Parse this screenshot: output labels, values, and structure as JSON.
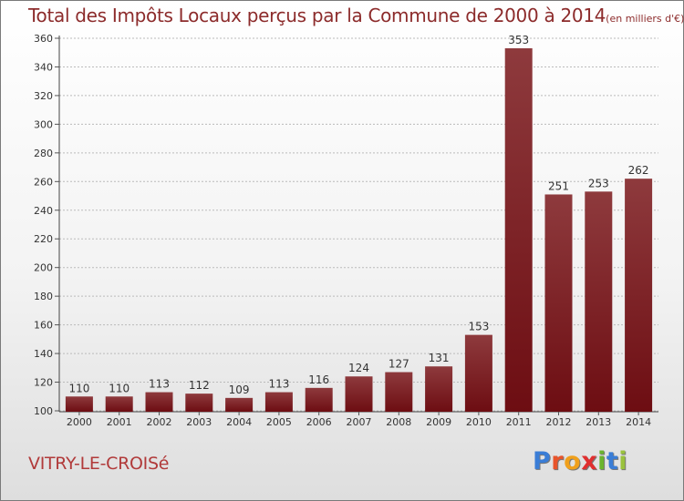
{
  "title": "Total des Impôts Locaux perçus par la Commune de 2000 à 2014",
  "subtitle": "(en milliers d'€)",
  "commune": "VITRY-LE-CROISé",
  "logo": {
    "letters": [
      "P",
      "r",
      "o",
      "x",
      "i",
      "t",
      "i"
    ],
    "colors": [
      "#3a7dd6",
      "#e8542b",
      "#f0a01c",
      "#e02f2f",
      "#6ab42d",
      "#3a7dd6",
      "#9ac23c"
    ]
  },
  "colors": {
    "bar": "#6d0d12",
    "bar_light": "#8e3a3d",
    "text": "#8c2b2b",
    "grid": "#bbbbbb"
  },
  "chart_data": {
    "type": "bar",
    "categories": [
      "2000",
      "2001",
      "2002",
      "2003",
      "2004",
      "2005",
      "2006",
      "2007",
      "2008",
      "2009",
      "2010",
      "2011",
      "2012",
      "2013",
      "2014"
    ],
    "values": [
      110,
      110,
      113,
      112,
      109,
      113,
      116,
      124,
      127,
      131,
      153,
      353,
      251,
      253,
      262
    ],
    "ylim": [
      100,
      360
    ],
    "yticks": [
      100,
      120,
      140,
      160,
      180,
      200,
      220,
      240,
      260,
      280,
      300,
      320,
      340,
      360
    ],
    "grid": true,
    "data_labels": true
  }
}
